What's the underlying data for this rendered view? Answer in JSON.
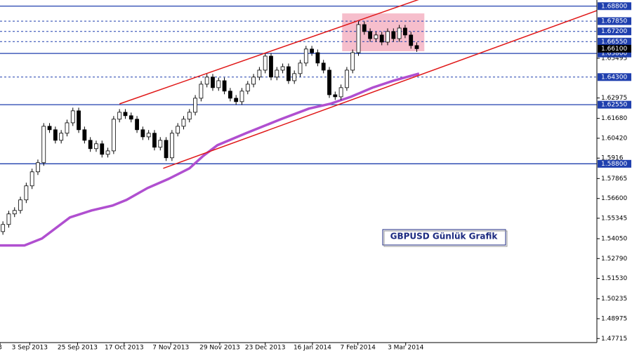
{
  "chart_data": {
    "type": "candlestick",
    "title": "GBPUSD Günlük Grafik",
    "xlim": [
      0,
      102.4
    ],
    "ylim": [
      1.4737,
      1.6919
    ],
    "xticks": [
      {
        "value": 0,
        "label": "3"
      },
      {
        "value": 5.1,
        "label": "3 Sep 2013"
      },
      {
        "value": 13.3,
        "label": "25 Sep 2013"
      },
      {
        "value": 21.3,
        "label": "17 Oct 2013"
      },
      {
        "value": 29.3,
        "label": "7 Nov 2013"
      },
      {
        "value": 37.7,
        "label": "29 Nov 2013"
      },
      {
        "value": 45.5,
        "label": "23 Dec 2013"
      },
      {
        "value": 53.6,
        "label": "16 Jan 2014"
      },
      {
        "value": 61.4,
        "label": "7 Feb 2014"
      },
      {
        "value": 69.6,
        "label": "3 Mar 2014"
      }
    ],
    "yticks": [
      1.65495,
      1.62975,
      {
        "value": 1.6168,
        "label": "1.61680"
      },
      {
        "value": 1.6042,
        "label": "1.60420"
      },
      1.5916,
      1.57865,
      {
        "value": 1.566,
        "label": "1.56600"
      },
      1.55345,
      {
        "value": 1.5405,
        "label": "1.54050"
      },
      {
        "value": 1.5279,
        "label": "1.52790"
      },
      {
        "value": 1.5153,
        "label": "1.51530"
      },
      1.50235,
      1.48975,
      1.47715
    ],
    "levels": [
      {
        "value": 1.688,
        "label": "1.68800",
        "style": "solid"
      },
      {
        "value": 1.6785,
        "label": "1.67850",
        "style": "dashed"
      },
      {
        "value": 1.672,
        "label": "1.67200",
        "style": "dashed"
      },
      {
        "value": 1.6655,
        "label": "1.66550",
        "style": "dashed"
      },
      {
        "value": 1.658,
        "label": "1.65800",
        "style": "solid"
      },
      {
        "value": 1.643,
        "label": "1.64300",
        "style": "dashed"
      },
      {
        "value": 1.6255,
        "label": "1.62550",
        "style": "solid"
      },
      {
        "value": 1.588,
        "label": "1.58800",
        "style": "solid"
      }
    ],
    "level_color": "#1f3fae",
    "current_price": {
      "value": 1.661,
      "label": "1.66100"
    },
    "open": [
      1.545,
      1.5495,
      1.5562,
      1.5584,
      1.5651,
      1.574,
      1.5829,
      1.5887,
      1.6118,
      1.6096,
      1.6029,
      1.6074,
      1.614,
      1.6216,
      1.6096,
      1.6029,
      1.5976,
      1.6007,
      1.594,
      1.5962,
      1.6163,
      1.6207,
      1.6185,
      1.6163,
      1.6096,
      1.6051,
      1.6074,
      1.5985,
      1.6029,
      1.5918,
      1.6074,
      1.6118,
      1.6163,
      1.6207,
      1.6296,
      1.6385,
      1.643,
      1.6363,
      1.6407,
      1.6341,
      1.6296,
      1.6274,
      1.6341,
      1.6385,
      1.643,
      1.6474,
      1.6563,
      1.643,
      1.6474,
      1.6496,
      1.6407,
      1.6452,
      1.6519,
      1.6608,
      1.6585,
      1.6519,
      1.6474,
      1.6318,
      1.6305,
      1.6363,
      1.6474,
      1.6585,
      1.6763,
      1.6719,
      1.6674,
      1.6697,
      1.6652,
      1.6719,
      1.6674,
      1.6741,
      1.6697,
      1.663
    ],
    "high": [
      1.5515,
      1.5582,
      1.5604,
      1.5671,
      1.576,
      1.5849,
      1.5907,
      1.6138,
      1.6138,
      1.6116,
      1.6094,
      1.616,
      1.6236,
      1.6236,
      1.6116,
      1.6049,
      1.6027,
      1.6027,
      1.5982,
      1.6183,
      1.6227,
      1.6227,
      1.6205,
      1.6183,
      1.6116,
      1.6094,
      1.6094,
      1.6049,
      1.6049,
      1.6094,
      1.6138,
      1.6183,
      1.6227,
      1.6316,
      1.6405,
      1.645,
      1.645,
      1.6427,
      1.6427,
      1.6361,
      1.6316,
      1.6361,
      1.6405,
      1.645,
      1.6494,
      1.6583,
      1.6583,
      1.6494,
      1.6516,
      1.6516,
      1.6472,
      1.6539,
      1.6628,
      1.6628,
      1.6605,
      1.6539,
      1.6494,
      1.6338,
      1.6383,
      1.6494,
      1.6605,
      1.6783,
      1.6783,
      1.6739,
      1.6717,
      1.6717,
      1.6739,
      1.6739,
      1.6761,
      1.6761,
      1.6717,
      1.665
    ],
    "low": [
      1.543,
      1.5475,
      1.5542,
      1.5564,
      1.5631,
      1.572,
      1.5809,
      1.5867,
      1.6076,
      1.6009,
      1.6009,
      1.6054,
      1.612,
      1.6076,
      1.6009,
      1.5956,
      1.5956,
      1.592,
      1.592,
      1.5942,
      1.6143,
      1.6165,
      1.6143,
      1.6076,
      1.6031,
      1.6031,
      1.5965,
      1.5965,
      1.5898,
      1.5898,
      1.6054,
      1.6098,
      1.6143,
      1.6187,
      1.6276,
      1.6365,
      1.6343,
      1.6343,
      1.6321,
      1.6276,
      1.6254,
      1.6254,
      1.6321,
      1.6365,
      1.641,
      1.6454,
      1.641,
      1.641,
      1.6454,
      1.6387,
      1.6387,
      1.6432,
      1.6499,
      1.6565,
      1.6499,
      1.6454,
      1.6298,
      1.6285,
      1.6285,
      1.6343,
      1.6454,
      1.6565,
      1.6699,
      1.6654,
      1.6654,
      1.6632,
      1.6632,
      1.6654,
      1.6654,
      1.6677,
      1.661,
      1.659
    ],
    "close": [
      1.5495,
      1.5562,
      1.5584,
      1.5651,
      1.574,
      1.5829,
      1.5887,
      1.6118,
      1.6096,
      1.6029,
      1.6074,
      1.614,
      1.6216,
      1.6096,
      1.6029,
      1.5976,
      1.6007,
      1.594,
      1.5962,
      1.6163,
      1.6207,
      1.6185,
      1.6163,
      1.6096,
      1.6051,
      1.6074,
      1.5985,
      1.6029,
      1.5918,
      1.6074,
      1.6118,
      1.6163,
      1.6207,
      1.6296,
      1.6385,
      1.643,
      1.6363,
      1.6407,
      1.6341,
      1.6296,
      1.6274,
      1.6341,
      1.6385,
      1.643,
      1.6474,
      1.6563,
      1.643,
      1.6474,
      1.6496,
      1.6407,
      1.6452,
      1.6519,
      1.6608,
      1.6585,
      1.6519,
      1.6474,
      1.6318,
      1.6305,
      1.6363,
      1.6474,
      1.6585,
      1.6763,
      1.6719,
      1.6674,
      1.6697,
      1.6652,
      1.6719,
      1.6674,
      1.6741,
      1.6697,
      1.663,
      1.661
    ],
    "moving_average": {
      "color": "#b04fd0",
      "x": [
        0,
        4.2,
        7.2,
        12,
        15.7,
        19.3,
        21.7,
        25.3,
        28.9,
        32.5,
        34.9,
        37.3,
        42.2,
        48.2,
        53,
        56.6,
        60.2,
        63.9,
        67.5,
        71.9
      ],
      "values": [
        1.5362,
        1.5362,
        1.5406,
        1.554,
        1.5584,
        1.5615,
        1.5651,
        1.5726,
        1.5784,
        1.5851,
        1.5931,
        1.5998,
        1.6074,
        1.6163,
        1.623,
        1.626,
        1.6305,
        1.6363,
        1.6407,
        1.6452
      ]
    },
    "trendlines": {
      "color": "#e01818",
      "lines": [
        {
          "x": [
            20.5,
            72.3
          ],
          "values": [
            1.626,
            1.6928
          ]
        },
        {
          "x": [
            28,
            102.4
          ],
          "values": [
            1.5851,
            1.6852
          ]
        }
      ]
    },
    "zone": {
      "color": "#f5b3c3",
      "x": [
        58.7,
        72.8
      ],
      "values": [
        1.6834,
        1.6594
      ]
    }
  }
}
